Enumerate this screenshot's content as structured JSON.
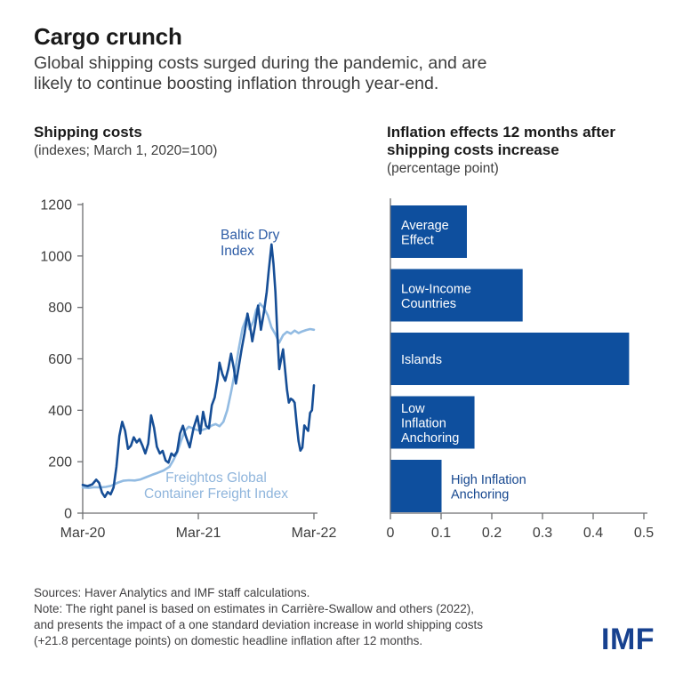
{
  "header": {
    "title": "Cargo crunch",
    "subtitle_lines": [
      "Global shipping costs surged during the pandemic, and are",
      "likely to continue boosting inflation through year-end."
    ]
  },
  "left_panel": {
    "title": "Shipping costs",
    "subtitle": "(indexes; March 1, 2020=100)"
  },
  "right_panel": {
    "title_lines": [
      "Inflation effects 12 months after",
      "shipping costs increase"
    ],
    "subtitle": "(percentage point)"
  },
  "footer": {
    "sources": "Sources: Haver Analytics and IMF staff calculations.",
    "note_lines": [
      "Note: The right panel is based on estimates in Carrière-Swallow and others (2022),",
      "and presents the impact of a one standard deviation increase in world shipping costs",
      "(+21.8 percentage points) on domestic headline inflation after 12 months."
    ],
    "logo": "IMF"
  },
  "colors": {
    "dark_blue_line": "#164e96",
    "light_blue_line": "#92bbe2",
    "bar_blue": "#0e4f9e",
    "baltic_label": "#2d5ca6",
    "freightos_label": "#8fb5dc",
    "outside_bar_label": "#16478f",
    "axis": "#6d6e71",
    "tick_text": "#3d3d3d",
    "bar_label_text": "#ffffff",
    "logo_blue": "#17418f"
  },
  "chart_data": [
    {
      "type": "line",
      "title": "Shipping costs",
      "subtitle": "(indexes; March 1, 2020=100)",
      "x_axis": {
        "tick_labels": [
          "Mar-20",
          "Mar-21",
          "Mar-22"
        ],
        "tick_months": [
          0,
          12,
          24
        ],
        "range_months": [
          0,
          24
        ]
      },
      "y_axis": {
        "tick_labels": [
          "0",
          "200",
          "400",
          "600",
          "800",
          "1000",
          "1200"
        ],
        "ticks": [
          0,
          200,
          400,
          600,
          800,
          1000,
          1200
        ],
        "range": [
          0,
          1200
        ]
      },
      "grid": false,
      "series": [
        {
          "name": "Freightos Global Container Freight Index",
          "label_lines": [
            "Freightos Global",
            "Container Freight Index"
          ],
          "points": [
            [
              0,
              100
            ],
            [
              0.6,
              98
            ],
            [
              1.2,
              101
            ],
            [
              1.8,
              100
            ],
            [
              2.4,
              102
            ],
            [
              3,
              107
            ],
            [
              3.6,
              118
            ],
            [
              4.2,
              126
            ],
            [
              4.8,
              128
            ],
            [
              5.4,
              127
            ],
            [
              6,
              131
            ],
            [
              6.6,
              140
            ],
            [
              7.2,
              149
            ],
            [
              7.8,
              157
            ],
            [
              8.4,
              166
            ],
            [
              9,
              180
            ],
            [
              9.4,
              205
            ],
            [
              9.8,
              235
            ],
            [
              10.2,
              280
            ],
            [
              10.6,
              320
            ],
            [
              11,
              336
            ],
            [
              11.4,
              330
            ],
            [
              11.8,
              324
            ],
            [
              12.2,
              320
            ],
            [
              12.6,
              326
            ],
            [
              13,
              331
            ],
            [
              13.4,
              341
            ],
            [
              13.8,
              346
            ],
            [
              14.2,
              338
            ],
            [
              14.6,
              355
            ],
            [
              15,
              400
            ],
            [
              15.4,
              470
            ],
            [
              15.8,
              550
            ],
            [
              16.2,
              640
            ],
            [
              16.6,
              720
            ],
            [
              17,
              760
            ],
            [
              17.3,
              715
            ],
            [
              17.7,
              745
            ],
            [
              18,
              790
            ],
            [
              18.4,
              815
            ],
            [
              18.8,
              798
            ],
            [
              19.2,
              770
            ],
            [
              19.6,
              722
            ],
            [
              20,
              695
            ],
            [
              20.4,
              663
            ],
            [
              20.8,
              692
            ],
            [
              21.2,
              705
            ],
            [
              21.6,
              698
            ],
            [
              22,
              710
            ],
            [
              22.4,
              700
            ],
            [
              22.8,
              707
            ],
            [
              23.2,
              712
            ],
            [
              23.6,
              716
            ],
            [
              24,
              713
            ]
          ]
        },
        {
          "name": "Baltic Dry Index",
          "label_lines": [
            "Baltic Dry",
            "Index"
          ],
          "points": [
            [
              0,
              110
            ],
            [
              0.5,
              105
            ],
            [
              1,
              112
            ],
            [
              1.4,
              130
            ],
            [
              1.7,
              118
            ],
            [
              2,
              80
            ],
            [
              2.3,
              63
            ],
            [
              2.6,
              82
            ],
            [
              2.9,
              73
            ],
            [
              3.2,
              100
            ],
            [
              3.5,
              180
            ],
            [
              3.8,
              300
            ],
            [
              4.1,
              355
            ],
            [
              4.4,
              320
            ],
            [
              4.7,
              250
            ],
            [
              5,
              262
            ],
            [
              5.3,
              295
            ],
            [
              5.6,
              275
            ],
            [
              5.9,
              288
            ],
            [
              6.2,
              262
            ],
            [
              6.5,
              232
            ],
            [
              6.8,
              270
            ],
            [
              7.1,
              380
            ],
            [
              7.4,
              332
            ],
            [
              7.7,
              258
            ],
            [
              8,
              232
            ],
            [
              8.3,
              242
            ],
            [
              8.6,
              205
            ],
            [
              8.9,
              196
            ],
            [
              9.2,
              232
            ],
            [
              9.5,
              222
            ],
            [
              9.8,
              240
            ],
            [
              10.1,
              310
            ],
            [
              10.4,
              340
            ],
            [
              10.7,
              300
            ],
            [
              11.1,
              256
            ],
            [
              11.5,
              330
            ],
            [
              11.9,
              377
            ],
            [
              12.2,
              310
            ],
            [
              12.5,
              394
            ],
            [
              12.8,
              340
            ],
            [
              13.1,
              330
            ],
            [
              13.4,
              420
            ],
            [
              13.7,
              450
            ],
            [
              14,
              520
            ],
            [
              14.2,
              585
            ],
            [
              14.5,
              540
            ],
            [
              14.8,
              515
            ],
            [
              15.1,
              560
            ],
            [
              15.4,
              620
            ],
            [
              15.7,
              560
            ],
            [
              15.9,
              504
            ],
            [
              16.2,
              570
            ],
            [
              16.5,
              640
            ],
            [
              16.8,
              700
            ],
            [
              17.1,
              776
            ],
            [
              17.4,
              720
            ],
            [
              17.6,
              668
            ],
            [
              17.9,
              730
            ],
            [
              18.2,
              807
            ],
            [
              18.5,
              713
            ],
            [
              18.8,
              780
            ],
            [
              19.1,
              860
            ],
            [
              19.3,
              940
            ],
            [
              19.6,
              1045
            ],
            [
              19.8,
              970
            ],
            [
              20,
              860
            ],
            [
              20.2,
              700
            ],
            [
              20.4,
              560
            ],
            [
              20.6,
              600
            ],
            [
              20.8,
              637
            ],
            [
              21,
              560
            ],
            [
              21.2,
              480
            ],
            [
              21.4,
              430
            ],
            [
              21.6,
              445
            ],
            [
              21.8,
              440
            ],
            [
              22,
              430
            ],
            [
              22.2,
              350
            ],
            [
              22.4,
              280
            ],
            [
              22.6,
              243
            ],
            [
              22.8,
              255
            ],
            [
              23,
              341
            ],
            [
              23.2,
              330
            ],
            [
              23.4,
              320
            ],
            [
              23.6,
              390
            ],
            [
              23.8,
              400
            ],
            [
              24,
              497
            ]
          ]
        }
      ]
    },
    {
      "type": "bar",
      "orientation": "horizontal",
      "title": "Inflation effects 12 months after shipping costs increase",
      "subtitle": "(percentage point)",
      "categories": [
        "Average Effect",
        "Low-Income Countries",
        "Islands",
        "Low Inflation Anchoring",
        "High Inflation Anchoring"
      ],
      "values": [
        0.15,
        0.26,
        0.47,
        0.165,
        0.1
      ],
      "bar_labels": [
        {
          "lines": [
            "Average",
            "Effect"
          ],
          "placement": "inside"
        },
        {
          "lines": [
            "Low-Income",
            "Countries"
          ],
          "placement": "inside"
        },
        {
          "lines": [
            "Islands"
          ],
          "placement": "inside"
        },
        {
          "lines": [
            "Low",
            "Inflation",
            "Anchoring"
          ],
          "placement": "inside"
        },
        {
          "lines": [
            "High Inflation",
            "Anchoring"
          ],
          "placement": "outside"
        }
      ],
      "x_axis": {
        "tick_labels": [
          "0",
          "0.1",
          "0.2",
          "0.3",
          "0.4",
          "0.5"
        ],
        "ticks": [
          0,
          0.1,
          0.2,
          0.3,
          0.4,
          0.5
        ],
        "range": [
          0,
          0.5
        ]
      },
      "grid": false
    }
  ]
}
